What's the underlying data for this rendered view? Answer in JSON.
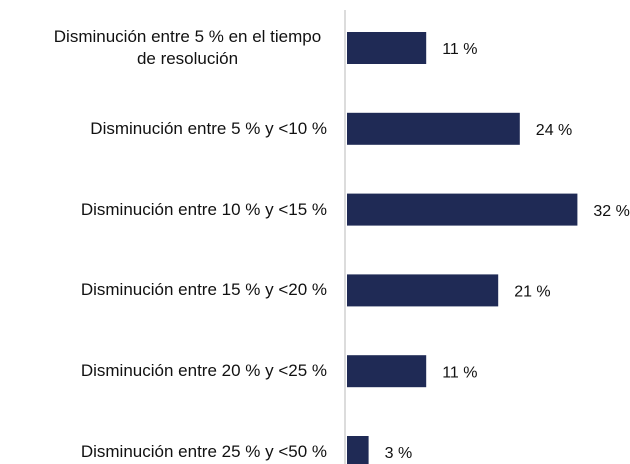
{
  "chart_data": {
    "type": "bar",
    "orientation": "horizontal",
    "categories": [
      "Disminución entre 5 % en el tiempo de resolución",
      "Disminución entre 5 % y <10 %",
      "Disminución entre 10 % y <15 %",
      "Disminución entre 15 % y <20 %",
      "Disminución entre 20 % y <25 %",
      "Disminución entre 25 % y <50 %"
    ],
    "values": [
      11,
      24,
      32,
      21,
      11,
      3
    ],
    "value_labels": [
      "11 %",
      "24 %",
      "32 %",
      "21 %",
      "11 %",
      "3 %"
    ],
    "color": "#1f2a55"
  }
}
